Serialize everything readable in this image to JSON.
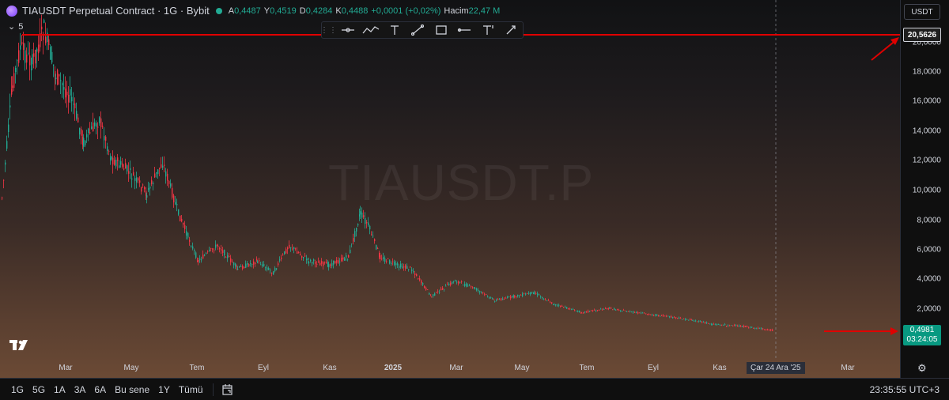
{
  "legend": {
    "title": "TIAUSDT Perpetual Contract · 1G · Bybit",
    "ohlc": [
      {
        "k": "A",
        "v": "0,4487"
      },
      {
        "k": "Y",
        "v": "0,4519"
      },
      {
        "k": "D",
        "v": "0,4284"
      },
      {
        "k": "K",
        "v": "0,4488"
      },
      {
        "k": "",
        "v": "+0,0001 (+0,02%)"
      },
      {
        "k": "Hacim",
        "v": "22,47 M"
      }
    ]
  },
  "indicator_count": "5",
  "watermark": "TIAUSDT.P",
  "currency": "USDT",
  "price_axis": [
    "20,0000",
    "18,0000",
    "16,0000",
    "14,0000",
    "12,0000",
    "10,0000",
    "8,0000",
    "6,0000",
    "4,0000",
    "2,0000"
  ],
  "price_tag_top": "20,5626",
  "price_tag_last": {
    "price": "0,4981",
    "countdown": "03:24:05"
  },
  "time_axis": [
    "Mar",
    "May",
    "Tem",
    "Eyl",
    "Kas",
    "2025",
    "Mar",
    "May",
    "Tem",
    "Eyl",
    "Kas",
    "Mar"
  ],
  "crosshair_date": "Çar 24 Ara '25",
  "ranges": [
    "1G",
    "5G",
    "1A",
    "3A",
    "6A",
    "Bu sene",
    "1Y",
    "Tümü"
  ],
  "clock": "23:35:55 UTC+3",
  "icons": {
    "toolbar": [
      "horizontal-ray-icon",
      "path-icon",
      "text-icon",
      "trend-line-icon",
      "rectangle-icon",
      "horizontal-line-icon",
      "text-tool-icon",
      "brush-icon"
    ]
  },
  "colors": {
    "up": "#22ab94",
    "down": "#f23645",
    "annotation": "#e00000",
    "last_price": "#089981"
  }
}
